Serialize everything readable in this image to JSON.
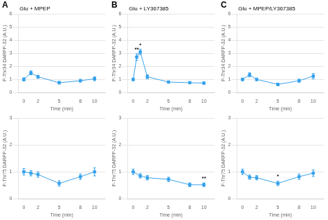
{
  "chart_data": [
    {
      "type": "line",
      "panel_label": "A",
      "title": "Glu + MPEP",
      "x": [
        0,
        1,
        2,
        5,
        8,
        10
      ],
      "values": [
        1.0,
        1.5,
        1.2,
        0.75,
        0.9,
        1.05
      ],
      "yerr": [
        0.12,
        0.15,
        0.12,
        0.1,
        0.1,
        0.15
      ],
      "xlim": [
        -0.8,
        11.5
      ],
      "xticks": [
        0,
        2,
        5,
        8,
        10
      ],
      "ylim": [
        0,
        6
      ],
      "yticks": [
        0,
        1,
        2,
        3,
        4,
        5,
        6
      ],
      "xlabel": "Time (min)",
      "ylabel": "P-Thr34 DARPP-32 (A.U.)",
      "marker": "square",
      "grid": "y",
      "annotations": []
    },
    {
      "type": "line",
      "panel_label": "B",
      "title": "Glu + LY367385",
      "x": [
        0,
        0.5,
        1,
        2,
        5,
        8,
        10
      ],
      "values": [
        1.0,
        2.7,
        3.1,
        1.2,
        0.8,
        0.75,
        0.72
      ],
      "yerr": [
        0.1,
        0.25,
        0.2,
        0.15,
        0.08,
        0.08,
        0.08
      ],
      "xlim": [
        -0.8,
        11.5
      ],
      "xticks": [
        0,
        2,
        5,
        8,
        10
      ],
      "ylim": [
        0,
        6
      ],
      "yticks": [
        0,
        1,
        2,
        3,
        4,
        5,
        6
      ],
      "xlabel": "Time (min)",
      "ylabel": "P-Thr34 DARPP-32 (A.U.)",
      "marker": "square",
      "grid": "y",
      "annotations": [
        {
          "x": 0.5,
          "y": 3.05,
          "text": "**"
        },
        {
          "x": 1.0,
          "y": 3.4,
          "text": "*"
        }
      ]
    },
    {
      "type": "line",
      "panel_label": "C",
      "title": "Glu + MPEP/LY367385",
      "x": [
        0,
        1,
        2,
        5,
        8,
        10
      ],
      "values": [
        1.0,
        1.35,
        1.0,
        0.62,
        0.9,
        1.25
      ],
      "yerr": [
        0.1,
        0.15,
        0.1,
        0.1,
        0.12,
        0.2
      ],
      "xlim": [
        -0.8,
        11.5
      ],
      "xticks": [
        0,
        2,
        5,
        8,
        10
      ],
      "ylim": [
        0,
        6
      ],
      "yticks": [
        0,
        1,
        2,
        3,
        4,
        5,
        6
      ],
      "xlabel": "Time (min)",
      "ylabel": "P-Thr34 DARPP-32 (A.U.)",
      "marker": "square",
      "grid": "y",
      "annotations": []
    },
    {
      "type": "line",
      "x": [
        0,
        1,
        2,
        5,
        8,
        10
      ],
      "values": [
        1.0,
        0.95,
        0.9,
        0.57,
        0.82,
        1.0
      ],
      "yerr": [
        0.12,
        0.1,
        0.1,
        0.1,
        0.1,
        0.15
      ],
      "xlim": [
        -0.8,
        11.5
      ],
      "xticks": [
        0,
        2,
        5,
        8,
        10
      ],
      "ylim": [
        0,
        3
      ],
      "yticks": [
        0,
        1,
        2,
        3
      ],
      "xlabel": "Time (min)",
      "ylabel": "P-Thr75 DARPP-32 (A.U.)",
      "marker": "square",
      "grid": "y",
      "annotations": []
    },
    {
      "type": "line",
      "x": [
        0,
        1,
        2,
        5,
        8,
        10
      ],
      "values": [
        1.0,
        0.85,
        0.78,
        0.72,
        0.52,
        0.52
      ],
      "yerr": [
        0.1,
        0.08,
        0.08,
        0.08,
        0.07,
        0.07
      ],
      "xlim": [
        -0.8,
        11.5
      ],
      "xticks": [
        0,
        2,
        5,
        8,
        10
      ],
      "ylim": [
        0,
        3
      ],
      "yticks": [
        0,
        1,
        2,
        3
      ],
      "xlabel": "Time (min)",
      "ylabel": "P-Thr75 DARPP-32 (A.U.)",
      "marker": "square",
      "grid": "y",
      "annotations": [
        {
          "x": 10,
          "y": 0.65,
          "text": "**"
        }
      ]
    },
    {
      "type": "line",
      "x": [
        0,
        1,
        2,
        5,
        8,
        10
      ],
      "values": [
        1.0,
        0.8,
        0.78,
        0.57,
        0.82,
        0.95
      ],
      "yerr": [
        0.1,
        0.08,
        0.08,
        0.08,
        0.1,
        0.12
      ],
      "xlim": [
        -0.8,
        11.5
      ],
      "xticks": [
        0,
        2,
        5,
        8,
        10
      ],
      "ylim": [
        0,
        3
      ],
      "yticks": [
        0,
        1,
        2,
        3
      ],
      "xlabel": "Time (min)",
      "ylabel": "P-Thr75 DARPP-32 (A.U.)",
      "marker": "square",
      "grid": "y",
      "annotations": [
        {
          "x": 5,
          "y": 0.72,
          "text": "*"
        }
      ]
    }
  ]
}
